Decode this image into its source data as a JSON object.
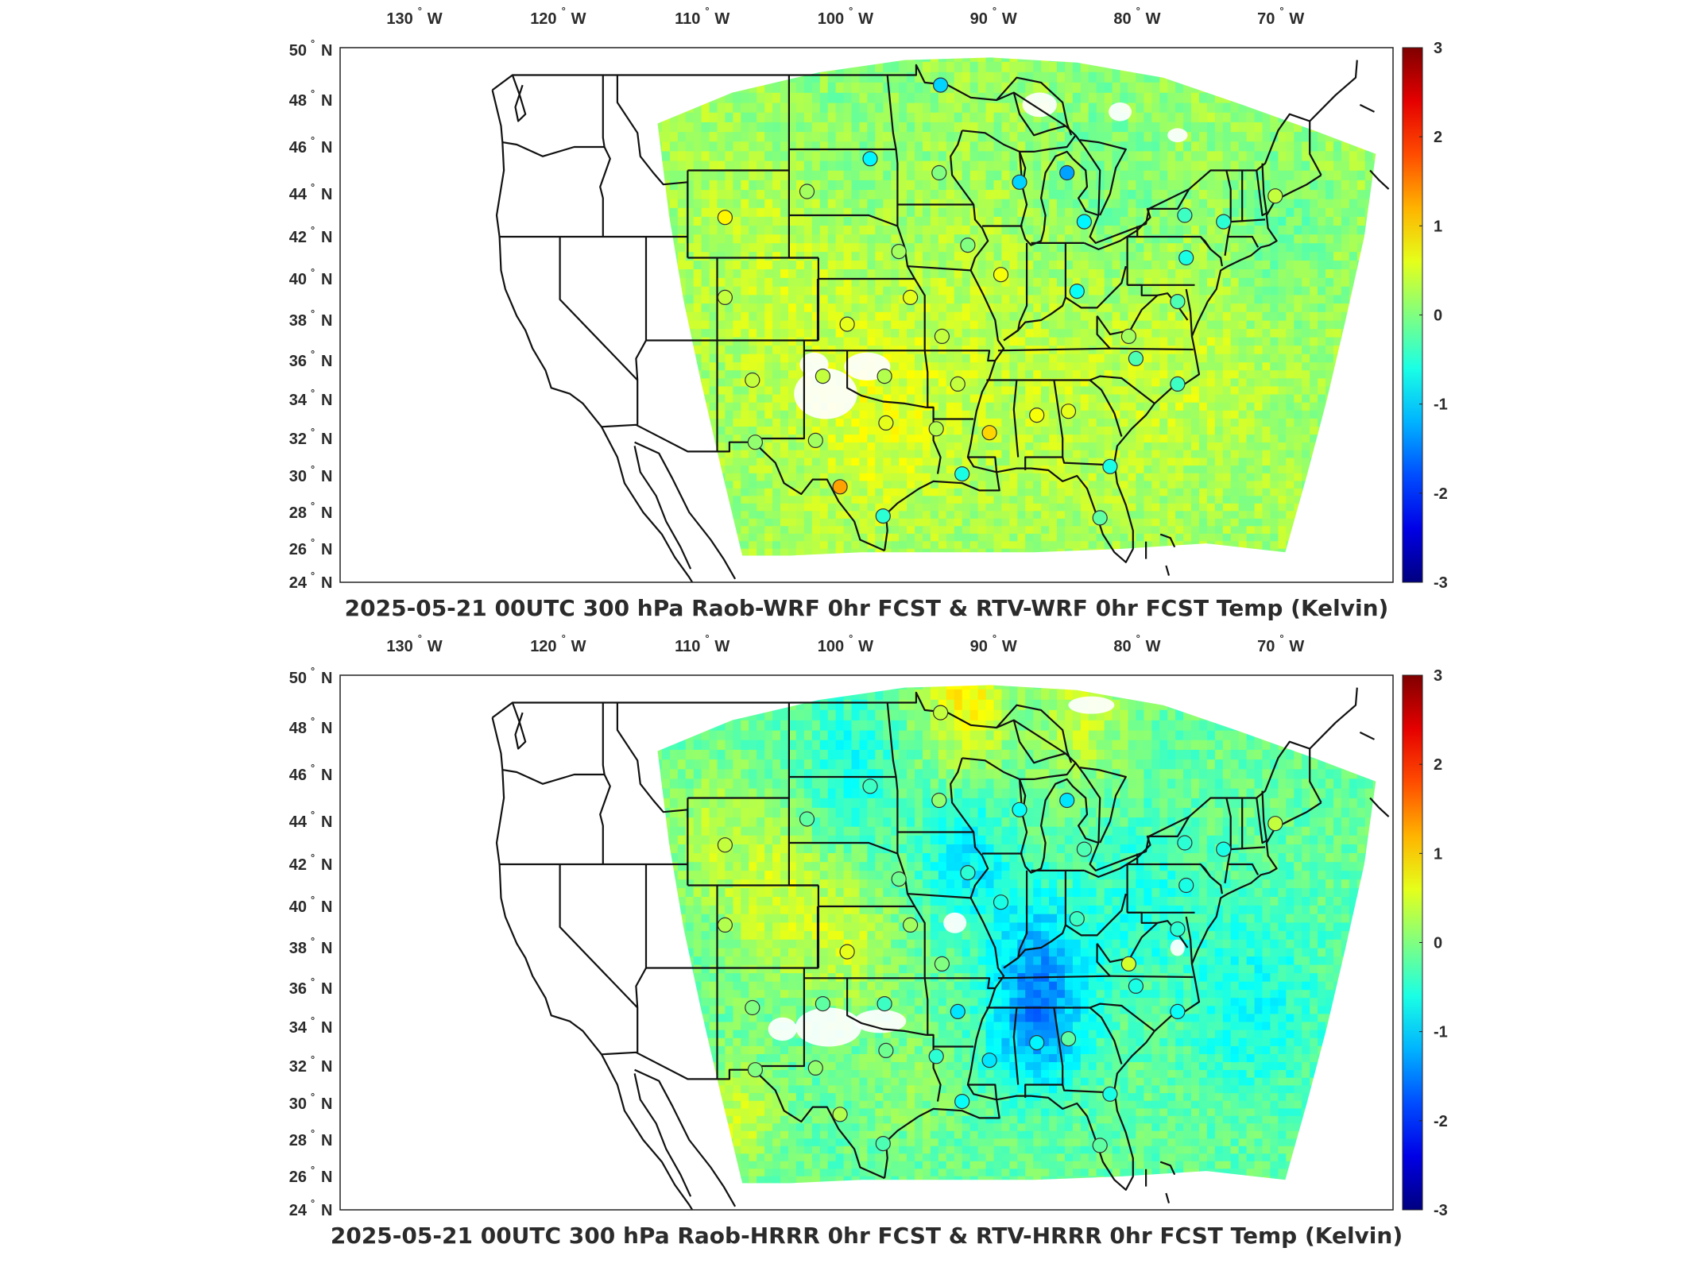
{
  "colors": {
    "frame": "#222222",
    "state_line": "#111111",
    "marker_stroke": "#333333"
  },
  "lon_ticks": [
    {
      "value": -130,
      "deg": "130",
      "hemi": "W"
    },
    {
      "value": -120,
      "deg": "120",
      "hemi": "W"
    },
    {
      "value": -110,
      "deg": "110",
      "hemi": "W"
    },
    {
      "value": -100,
      "deg": "100",
      "hemi": "W"
    },
    {
      "value": -90,
      "deg": "90",
      "hemi": "W"
    },
    {
      "value": -80,
      "deg": "80",
      "hemi": "W"
    },
    {
      "value": -70,
      "deg": "70",
      "hemi": "W"
    }
  ],
  "lat_ticks": [
    {
      "value": 50,
      "deg": "50",
      "hemi": "N"
    },
    {
      "value": 48,
      "deg": "48",
      "hemi": "N"
    },
    {
      "value": 46,
      "deg": "46",
      "hemi": "N"
    },
    {
      "value": 44,
      "deg": "44",
      "hemi": "N"
    },
    {
      "value": 42,
      "deg": "42",
      "hemi": "N"
    },
    {
      "value": 40,
      "deg": "40",
      "hemi": "N"
    },
    {
      "value": 38,
      "deg": "38",
      "hemi": "N"
    },
    {
      "value": 36,
      "deg": "36",
      "hemi": "N"
    },
    {
      "value": 34,
      "deg": "34",
      "hemi": "N"
    },
    {
      "value": 32,
      "deg": "32",
      "hemi": "N"
    },
    {
      "value": 30,
      "deg": "30",
      "hemi": "N"
    },
    {
      "value": 28,
      "deg": "28",
      "hemi": "N"
    },
    {
      "value": 26,
      "deg": "26",
      "hemi": "N"
    },
    {
      "value": 24,
      "deg": "24",
      "hemi": "N"
    }
  ],
  "colorbar": {
    "min": -3,
    "max": 3,
    "ticks": [
      "3",
      "2",
      "1",
      "0",
      "-1",
      "-2",
      "-3"
    ]
  },
  "panels": [
    {
      "id": "top",
      "title": "2025-05-21 00UTC 300 hPa Raob-WRF 0hr FCST & RTV-WRF 0hr FCST Temp (Kelvin)",
      "field_bias": 0.0,
      "stations": [
        {
          "lon": -93.5,
          "lat": 48.6,
          "v": -1.0
        },
        {
          "lon": -98.4,
          "lat": 45.5,
          "v": -0.8
        },
        {
          "lon": -93.6,
          "lat": 44.9,
          "v": 0.0
        },
        {
          "lon": -88.0,
          "lat": 44.5,
          "v": -1.0
        },
        {
          "lon": -84.7,
          "lat": 44.9,
          "v": -1.3
        },
        {
          "lon": -102.8,
          "lat": 44.1,
          "v": 0.2
        },
        {
          "lon": -108.5,
          "lat": 42.9,
          "v": 0.8
        },
        {
          "lon": -83.5,
          "lat": 42.7,
          "v": -0.8
        },
        {
          "lon": -91.6,
          "lat": 41.6,
          "v": 0.0
        },
        {
          "lon": -96.4,
          "lat": 41.3,
          "v": 0.2
        },
        {
          "lon": -89.3,
          "lat": 40.2,
          "v": 0.7
        },
        {
          "lon": -84.0,
          "lat": 39.4,
          "v": -0.7
        },
        {
          "lon": -108.5,
          "lat": 39.1,
          "v": 0.4
        },
        {
          "lon": -95.6,
          "lat": 39.1,
          "v": 0.6
        },
        {
          "lon": -100.0,
          "lat": 37.8,
          "v": 0.6
        },
        {
          "lon": -93.4,
          "lat": 37.2,
          "v": 0.4
        },
        {
          "lon": -80.4,
          "lat": 37.2,
          "v": 0.2
        },
        {
          "lon": -79.9,
          "lat": 36.1,
          "v": -0.3
        },
        {
          "lon": -106.6,
          "lat": 35.0,
          "v": 0.4
        },
        {
          "lon": -101.7,
          "lat": 35.2,
          "v": 0.4
        },
        {
          "lon": -97.4,
          "lat": 35.2,
          "v": 0.3
        },
        {
          "lon": -92.3,
          "lat": 34.8,
          "v": 0.4
        },
        {
          "lon": -77.0,
          "lat": 34.8,
          "v": -0.4
        },
        {
          "lon": -86.8,
          "lat": 33.2,
          "v": 0.7
        },
        {
          "lon": -84.6,
          "lat": 33.4,
          "v": 0.6
        },
        {
          "lon": -97.3,
          "lat": 32.8,
          "v": 0.6
        },
        {
          "lon": -93.8,
          "lat": 32.5,
          "v": 0.3
        },
        {
          "lon": -90.1,
          "lat": 32.3,
          "v": 1.0
        },
        {
          "lon": -102.2,
          "lat": 31.9,
          "v": 0.2
        },
        {
          "lon": -106.4,
          "lat": 31.8,
          "v": 0.1
        },
        {
          "lon": -100.5,
          "lat": 29.4,
          "v": 1.3
        },
        {
          "lon": -92.0,
          "lat": 30.1,
          "v": -0.6
        },
        {
          "lon": -81.7,
          "lat": 30.5,
          "v": -0.6
        },
        {
          "lon": -97.5,
          "lat": 27.8,
          "v": -0.5
        },
        {
          "lon": -82.4,
          "lat": 27.7,
          "v": -0.2
        },
        {
          "lon": -76.4,
          "lat": 41.0,
          "v": -0.6
        },
        {
          "lon": -77.0,
          "lat": 38.9,
          "v": -0.3
        },
        {
          "lon": -73.8,
          "lat": 42.7,
          "v": -0.5
        },
        {
          "lon": -70.2,
          "lat": 43.9,
          "v": 0.4
        },
        {
          "lon": -76.5,
          "lat": 43.0,
          "v": -0.4
        }
      ]
    },
    {
      "id": "bottom",
      "title": "2025-05-21 00UTC 300 hPa Raob-HRRR 0hr FCST & RTV-HRRR 0hr FCST Temp (Kelvin)",
      "field_bias": -0.35,
      "stations": [
        {
          "lon": -93.5,
          "lat": 48.6,
          "v": 0.4
        },
        {
          "lon": -98.4,
          "lat": 45.5,
          "v": -0.4
        },
        {
          "lon": -93.6,
          "lat": 44.9,
          "v": 0.1
        },
        {
          "lon": -88.0,
          "lat": 44.5,
          "v": -0.7
        },
        {
          "lon": -84.7,
          "lat": 44.9,
          "v": -0.9
        },
        {
          "lon": -102.8,
          "lat": 44.1,
          "v": -0.2
        },
        {
          "lon": -108.5,
          "lat": 42.9,
          "v": 0.4
        },
        {
          "lon": -83.5,
          "lat": 42.7,
          "v": -0.3
        },
        {
          "lon": -91.6,
          "lat": 41.6,
          "v": -0.5
        },
        {
          "lon": -96.4,
          "lat": 41.3,
          "v": -0.1
        },
        {
          "lon": -89.3,
          "lat": 40.2,
          "v": -0.6
        },
        {
          "lon": -84.0,
          "lat": 39.4,
          "v": -0.4
        },
        {
          "lon": -108.5,
          "lat": 39.1,
          "v": 0.3
        },
        {
          "lon": -95.6,
          "lat": 39.1,
          "v": 0.2
        },
        {
          "lon": -100.0,
          "lat": 37.8,
          "v": 0.6
        },
        {
          "lon": -93.4,
          "lat": 37.2,
          "v": 0.0
        },
        {
          "lon": -80.4,
          "lat": 37.2,
          "v": 0.5
        },
        {
          "lon": -79.9,
          "lat": 36.1,
          "v": -0.6
        },
        {
          "lon": -106.6,
          "lat": 35.0,
          "v": 0.0
        },
        {
          "lon": -101.7,
          "lat": 35.2,
          "v": -0.2
        },
        {
          "lon": -97.4,
          "lat": 35.2,
          "v": -0.4
        },
        {
          "lon": -92.3,
          "lat": 34.8,
          "v": -0.9
        },
        {
          "lon": -77.0,
          "lat": 34.8,
          "v": -0.7
        },
        {
          "lon": -86.8,
          "lat": 33.2,
          "v": -0.8
        },
        {
          "lon": -84.6,
          "lat": 33.4,
          "v": -0.2
        },
        {
          "lon": -97.3,
          "lat": 32.8,
          "v": -0.1
        },
        {
          "lon": -93.8,
          "lat": 32.5,
          "v": -0.5
        },
        {
          "lon": -90.1,
          "lat": 32.3,
          "v": -0.9
        },
        {
          "lon": -102.2,
          "lat": 31.9,
          "v": 0.1
        },
        {
          "lon": -106.4,
          "lat": 31.8,
          "v": 0.0
        },
        {
          "lon": -100.5,
          "lat": 29.4,
          "v": 0.3
        },
        {
          "lon": -92.0,
          "lat": 30.1,
          "v": -0.7
        },
        {
          "lon": -81.7,
          "lat": 30.5,
          "v": -0.6
        },
        {
          "lon": -97.5,
          "lat": 27.8,
          "v": -0.3
        },
        {
          "lon": -82.4,
          "lat": 27.7,
          "v": -0.2
        },
        {
          "lon": -76.4,
          "lat": 41.0,
          "v": -0.6
        },
        {
          "lon": -77.0,
          "lat": 38.9,
          "v": -0.5
        },
        {
          "lon": -73.8,
          "lat": 42.7,
          "v": -0.6
        },
        {
          "lon": -70.2,
          "lat": 43.9,
          "v": 0.4
        },
        {
          "lon": -76.5,
          "lat": 43.0,
          "v": -0.5
        }
      ]
    }
  ]
}
